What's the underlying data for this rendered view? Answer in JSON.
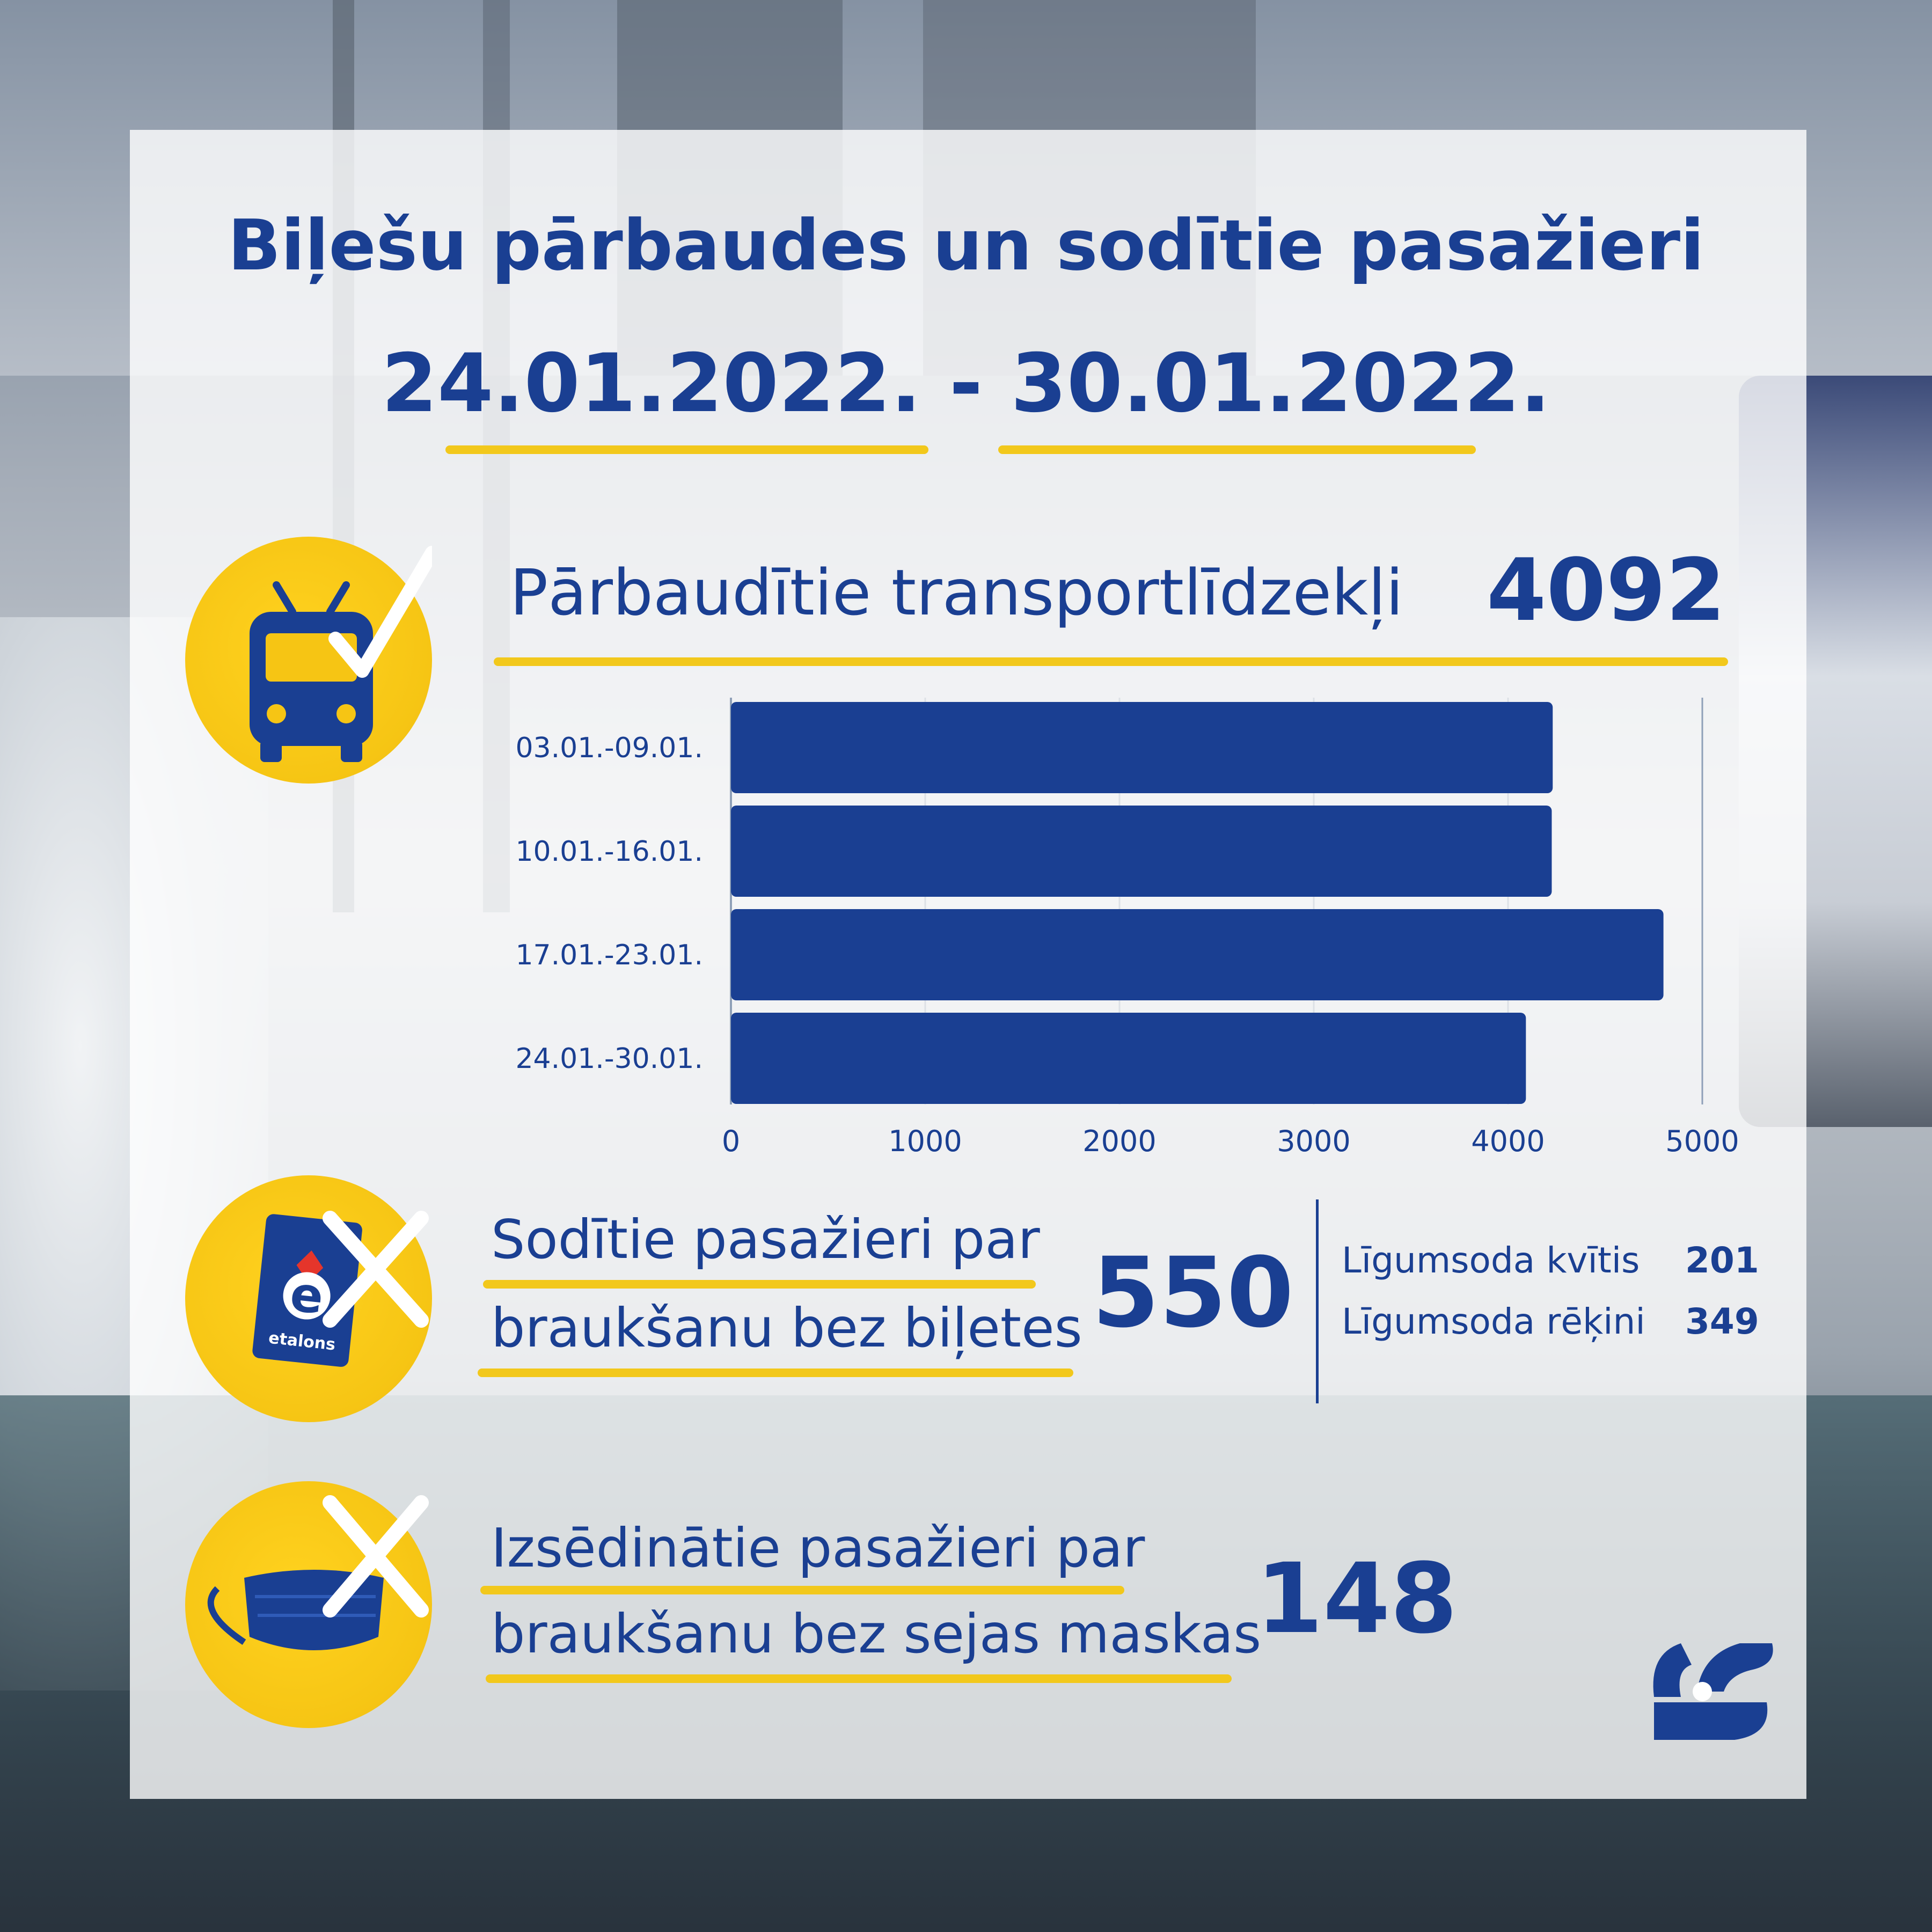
{
  "header": {
    "title_line1": "Biļešu pārbaudes un sodītie pasažieri",
    "title_line2": "24.01.2022. - 30.01.2022."
  },
  "colors": {
    "accent": "#1a3f92",
    "highlight": "#f6c514",
    "bar": "#1a3f92"
  },
  "vehicles": {
    "icon": "trolleybus-check-icon",
    "label": "Pārbaudītie transportlīdzekļi",
    "value": "4092"
  },
  "chart_data": {
    "type": "bar",
    "orientation": "horizontal",
    "categories": [
      "03.01.-09.01.",
      "10.01.-16.01.",
      "17.01.-23.01.",
      "24.01.-30.01."
    ],
    "values": [
      4230,
      4225,
      4800,
      4092
    ],
    "xlim": [
      0,
      5000
    ],
    "xticks": [
      "0",
      "1000",
      "2000",
      "3000",
      "4000",
      "5000"
    ],
    "grid": true
  },
  "fined": {
    "icon": "etalons-card-cross-icon",
    "card_text": "etalons",
    "label_line1": "Sodītie pasažieri par",
    "label_line2": "braukšanu bez biļetes",
    "value": "550",
    "breakdown": [
      {
        "label": "Līgumsoda kvītis",
        "value": "201"
      },
      {
        "label": "Līgumsoda rēķini",
        "value": "349"
      }
    ]
  },
  "removed": {
    "icon": "face-mask-cross-icon",
    "label_line1": "Izsēdinātie pasažieri par",
    "label_line2": "braukšanu bez sejas maskas",
    "value": "148"
  },
  "logo": {
    "icon": "rigas-satiksme-logo-icon"
  }
}
